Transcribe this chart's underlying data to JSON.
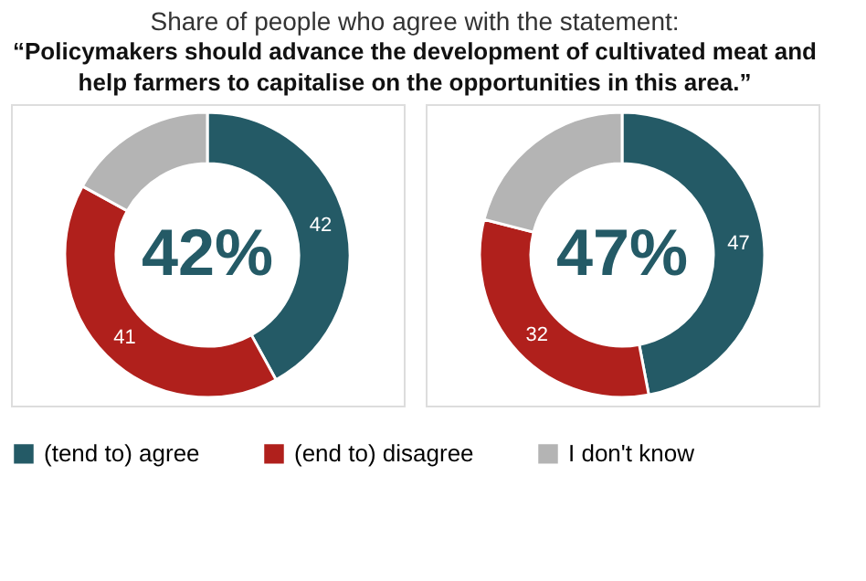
{
  "chart_data": {
    "type": "donut",
    "title": "Share of people who agree with the statement:",
    "subtitle": "“Policymakers should advance the development of cultivated meat and help farmers to capitalise on the opportunities in this area.”",
    "categories": [
      "(tend to) agree",
      "(end to) disagree",
      "I don't know"
    ],
    "colors": [
      "#245a66",
      "#b0201c",
      "#b4b4b4"
    ],
    "series": [
      {
        "values": [
          42,
          41,
          17
        ],
        "value_labels": [
          "42",
          "41",
          null
        ]
      },
      {
        "values": [
          47,
          32,
          21
        ],
        "value_labels": [
          "47",
          "32",
          null
        ]
      }
    ],
    "annotations": [
      "42%",
      "47%"
    ],
    "legend": "bottom"
  }
}
